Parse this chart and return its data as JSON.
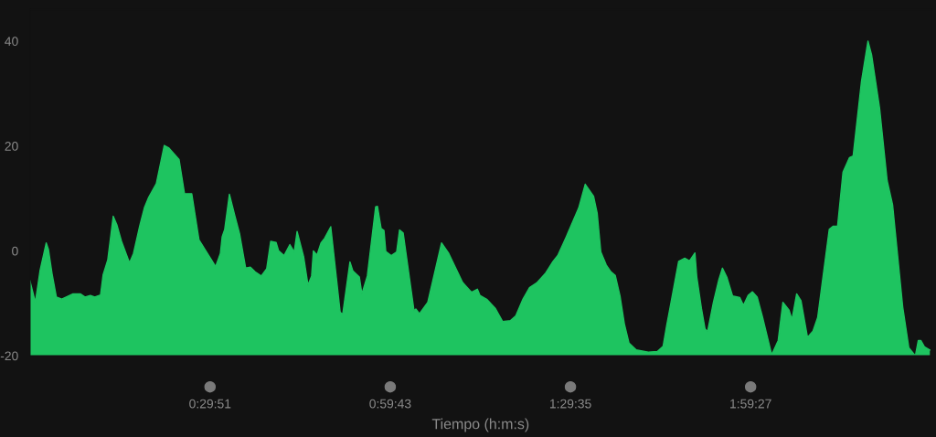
{
  "chart_data": {
    "type": "area",
    "xlabel": "Tiempo (h:m:s)",
    "xlim": [
      0,
      2.49
    ],
    "ylim": [
      -20,
      46
    ],
    "xticks": [
      {
        "value": 0.4975,
        "label": "0:29:51"
      },
      {
        "value": 0.9953,
        "label": "0:59:43"
      },
      {
        "value": 1.4931,
        "label": "1:29:35"
      },
      {
        "value": 1.9908,
        "label": "1:59:27"
      }
    ],
    "yticks": [
      -20,
      0,
      20,
      40
    ],
    "grid": false,
    "legend": false,
    "series": [
      {
        "color": "#1ec460",
        "x": [
          0.0,
          0.015,
          0.028,
          0.045,
          0.051,
          0.061,
          0.073,
          0.088,
          0.119,
          0.139,
          0.152,
          0.167,
          0.179,
          0.195,
          0.202,
          0.215,
          0.23,
          0.24,
          0.253,
          0.275,
          0.286,
          0.303,
          0.316,
          0.328,
          0.349,
          0.371,
          0.384,
          0.412,
          0.427,
          0.447,
          0.467,
          0.513,
          0.526,
          0.531,
          0.538,
          0.551,
          0.566,
          0.579,
          0.596,
          0.609,
          0.622,
          0.639,
          0.654,
          0.665,
          0.68,
          0.687,
          0.702,
          0.718,
          0.73,
          0.738,
          0.756,
          0.768,
          0.778,
          0.783,
          0.793,
          0.804,
          0.814,
          0.831,
          0.857,
          0.864,
          0.884,
          0.892,
          0.91,
          0.917,
          0.932,
          0.955,
          0.96,
          0.97,
          0.978,
          0.983,
          0.998,
          1.013,
          1.021,
          1.031,
          1.061,
          1.066,
          1.076,
          1.099,
          1.137,
          1.157,
          1.195,
          1.22,
          1.236,
          1.243,
          1.263,
          1.286,
          1.306,
          1.327,
          1.342,
          1.362,
          1.38,
          1.4,
          1.425,
          1.445,
          1.458,
          1.481,
          1.516,
          1.534,
          1.557,
          1.567,
          1.577,
          1.592,
          1.605,
          1.617,
          1.63,
          1.642,
          1.655,
          1.675,
          1.708,
          1.733,
          1.749,
          1.759,
          1.771,
          1.792,
          1.809,
          1.822,
          1.837,
          1.842,
          1.855,
          1.865,
          1.872,
          1.888,
          1.903,
          1.913,
          1.925,
          1.941,
          1.961,
          1.971,
          1.984,
          1.996,
          2.009,
          2.024,
          2.049,
          2.067,
          2.08,
          2.097,
          2.105,
          2.118,
          2.13,
          2.148,
          2.163,
          2.176,
          2.208,
          2.219,
          2.231,
          2.246,
          2.264,
          2.274,
          2.297,
          2.315,
          2.325,
          2.347,
          2.368,
          2.383,
          2.411,
          2.428,
          2.446,
          2.454,
          2.461,
          2.471,
          2.486
        ],
        "values": [
          -5.7,
          -9.8,
          -3.7,
          1.5,
          0.3,
          -4.3,
          -8.8,
          -9.2,
          -8.2,
          -8.2,
          -8.8,
          -8.5,
          -8.8,
          -8.4,
          -4.6,
          -1.7,
          6.6,
          5.0,
          1.8,
          -2.3,
          -0.5,
          4.7,
          8.2,
          10.2,
          12.8,
          20.1,
          19.6,
          17.4,
          10.9,
          10.9,
          2.1,
          -3.0,
          -0.5,
          2.7,
          4.1,
          10.8,
          6.7,
          3.3,
          -3.3,
          -3.1,
          -4.0,
          -4.8,
          -3.4,
          1.8,
          1.6,
          0.0,
          -0.9,
          1.2,
          -0.2,
          3.7,
          -1.1,
          -6.5,
          -4.8,
          0.0,
          -0.8,
          1.5,
          2.4,
          4.6,
          -11.7,
          -12.1,
          -2.1,
          -3.8,
          -5.0,
          -8.2,
          -4.8,
          8.4,
          8.5,
          4.3,
          3.9,
          -0.1,
          -0.9,
          -0.2,
          4.0,
          3.4,
          -11.4,
          -11.1,
          -12.0,
          -9.8,
          1.5,
          -0.5,
          -6.0,
          -7.9,
          -7.3,
          -8.5,
          -9.3,
          -11.0,
          -13.5,
          -13.3,
          -12.4,
          -9.2,
          -7.0,
          -6.1,
          -4.2,
          -2.0,
          -0.9,
          2.6,
          8.2,
          12.7,
          10.4,
          7.2,
          -0.2,
          -2.7,
          -4.0,
          -4.7,
          -8.6,
          -13.9,
          -17.6,
          -18.9,
          -19.3,
          -19.2,
          -18.2,
          -14.2,
          -9.8,
          -2.0,
          -1.4,
          -1.9,
          -0.4,
          -4.9,
          -11.0,
          -14.9,
          -15.4,
          -9.8,
          -5.5,
          -3.3,
          -5.0,
          -8.6,
          -8.9,
          -10.4,
          -8.5,
          -7.8,
          -8.8,
          -12.7,
          -19.8,
          -17.1,
          -9.8,
          -11.3,
          -13.1,
          -8.2,
          -9.5,
          -16.5,
          -15.3,
          -12.7,
          4.1,
          4.7,
          4.7,
          15.0,
          17.8,
          18.1,
          32.3,
          40.0,
          37.4,
          27.3,
          13.4,
          8.8,
          -10.7,
          -18.5,
          -20.0,
          -17.1,
          -17.1,
          -18.3,
          -18.9
        ]
      }
    ]
  }
}
